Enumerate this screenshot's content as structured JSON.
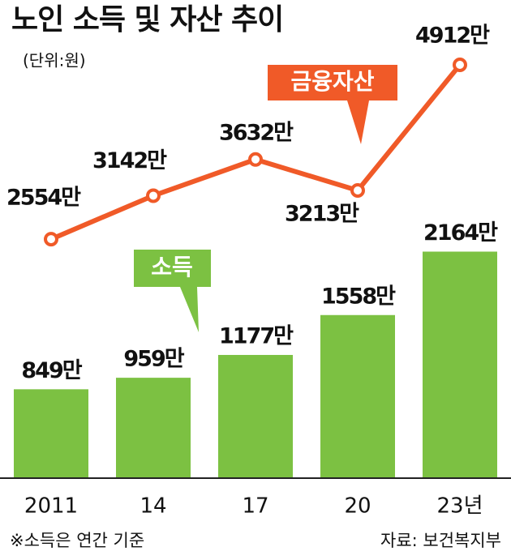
{
  "chart_data": {
    "type": "combo",
    "title": "노인 소득 및 자산 추이",
    "subtitle": "(단위:원)",
    "categories": [
      "2011",
      "14",
      "17",
      "20",
      "23년"
    ],
    "series": [
      {
        "name": "소득",
        "type": "bar",
        "color": "#7cc142",
        "values": [
          849,
          959,
          1177,
          1558,
          2164
        ],
        "value_labels": [
          "849만",
          "959만",
          "1177만",
          "1558만",
          "2164만"
        ]
      },
      {
        "name": "금융자산",
        "type": "line",
        "axis": "y2",
        "color": "#f05a28",
        "values": [
          2554,
          3142,
          3632,
          3213,
          4912
        ],
        "value_labels": [
          "2554만",
          "3142만",
          "3632만",
          "3213만",
          "4912만"
        ]
      }
    ],
    "ylim": [
      0,
      2400
    ],
    "y2lim": [
      0,
      5000
    ],
    "footnote": "※소득은 연간 기준",
    "source": "자료: 보건복지부"
  }
}
